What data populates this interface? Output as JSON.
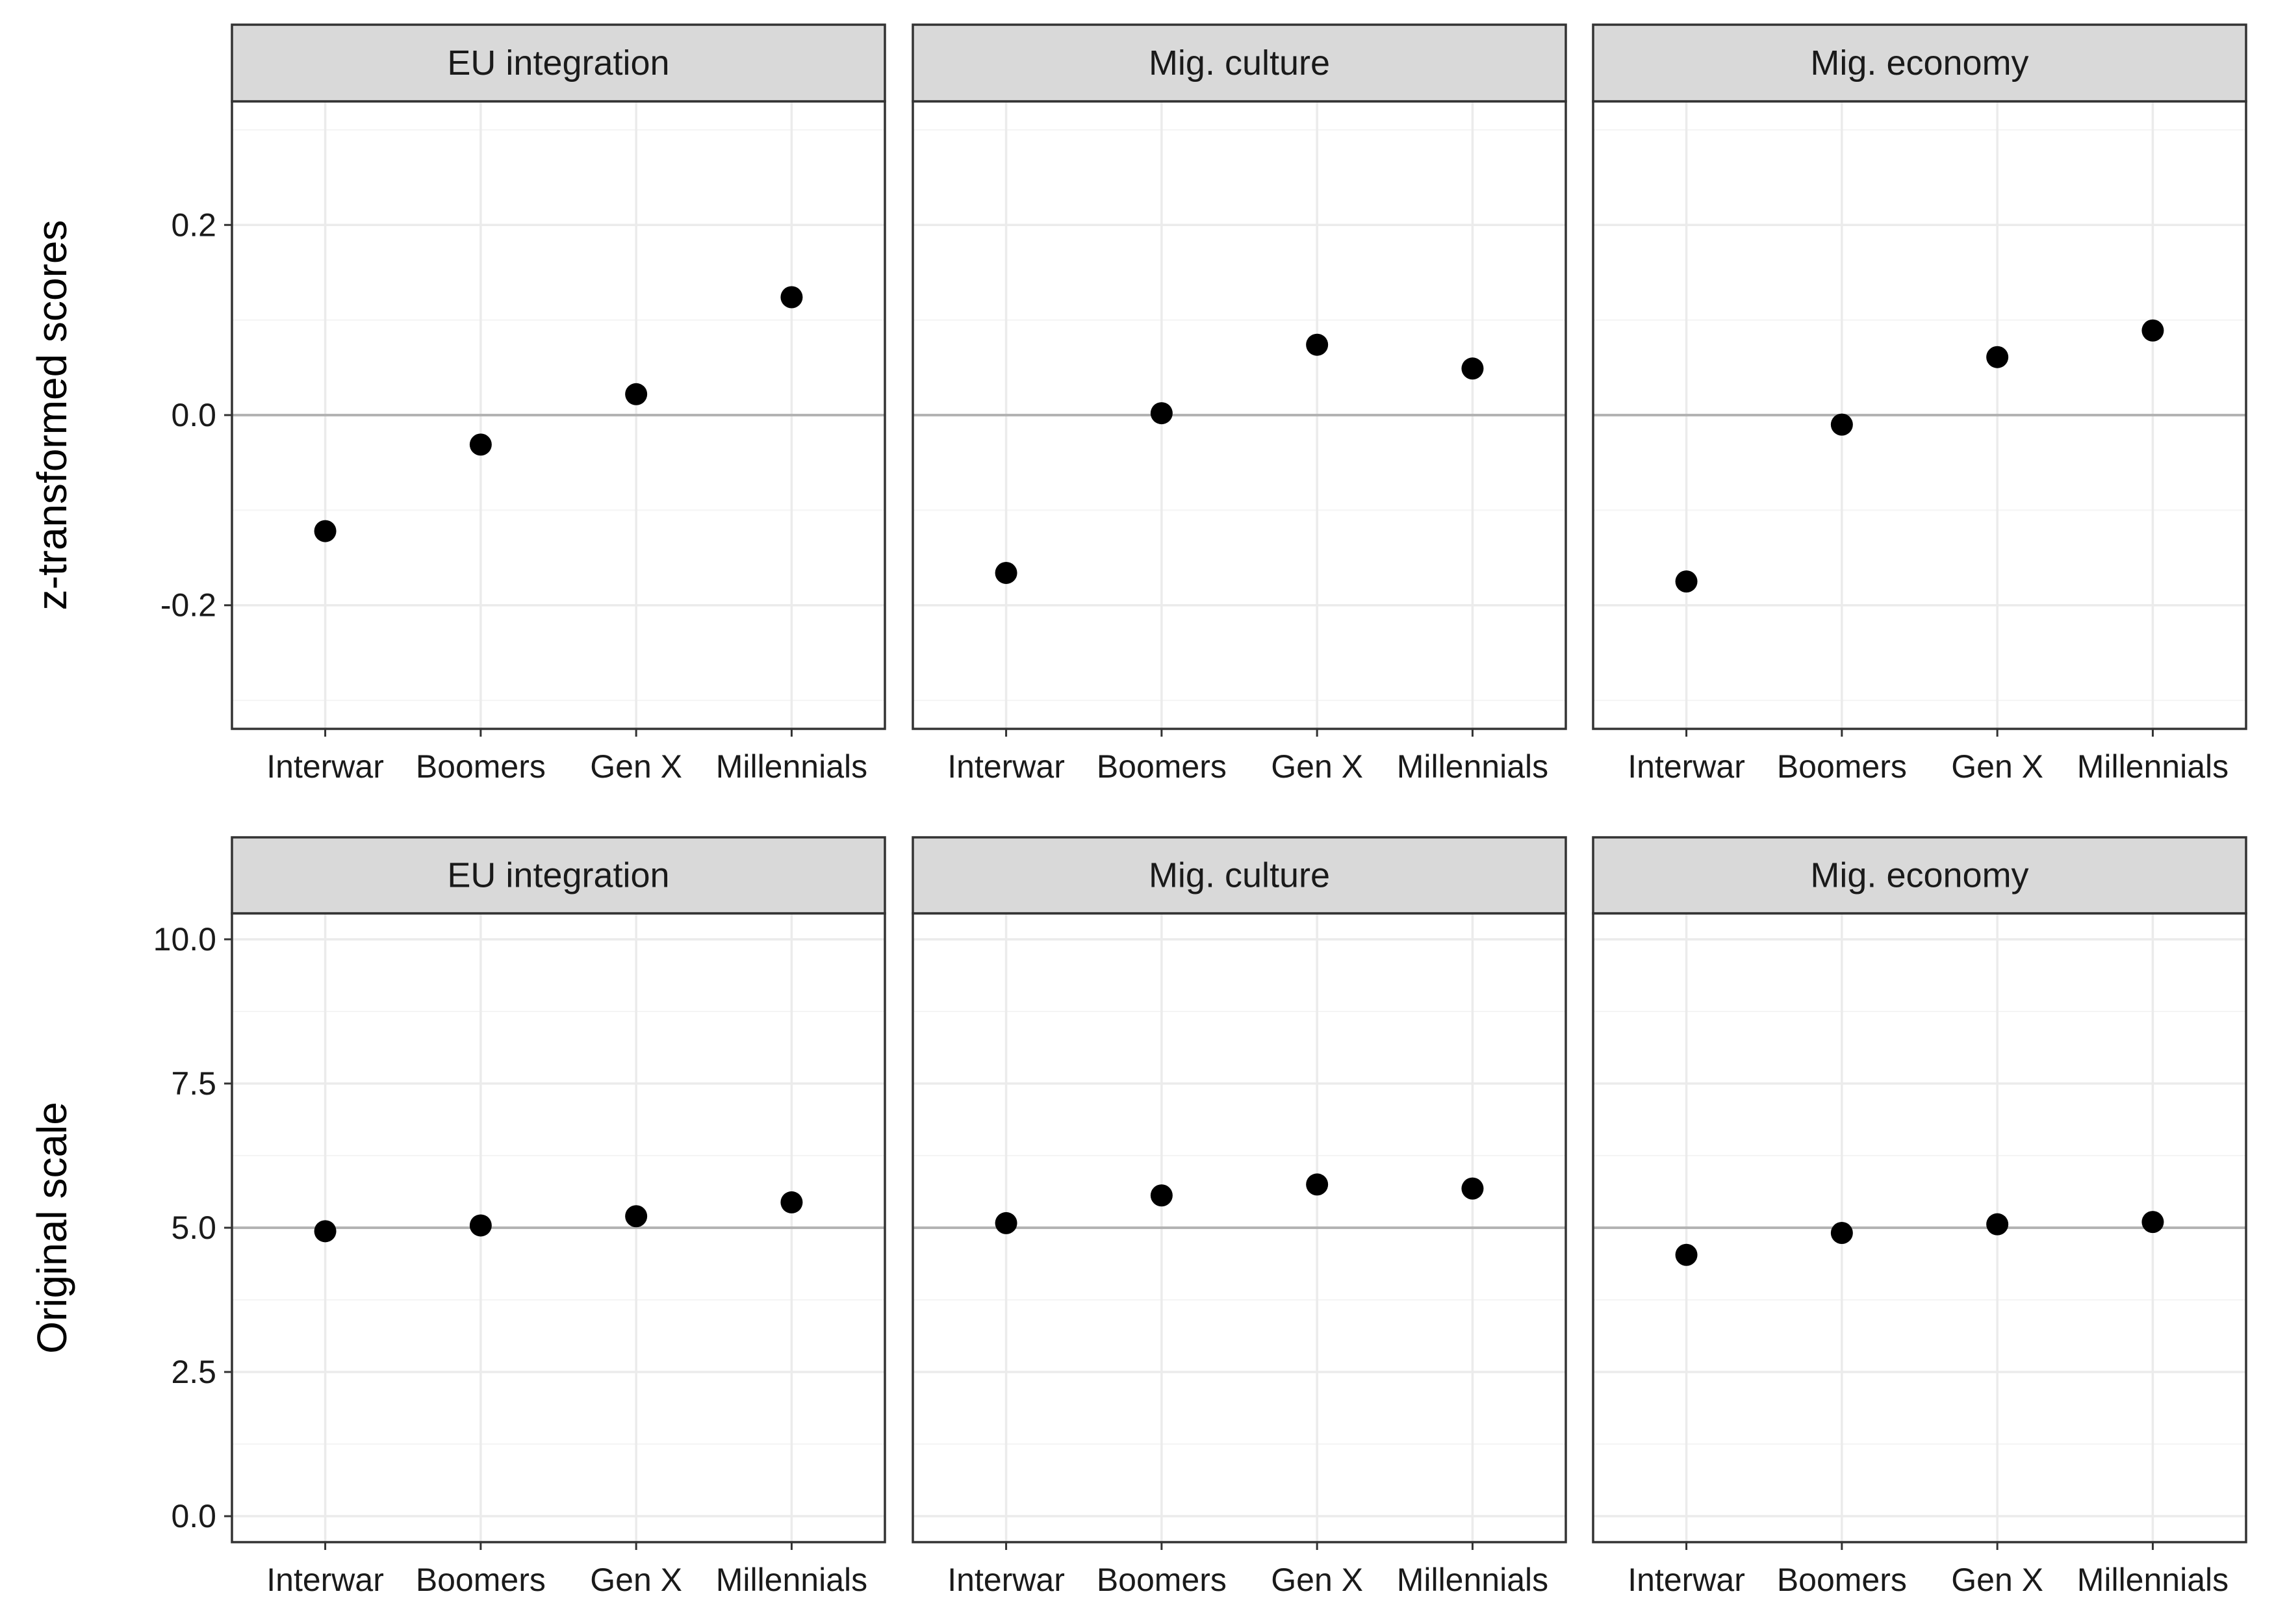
{
  "chart_data": [
    {
      "type": "scatter",
      "ylabel": "z-transformed scores",
      "ylim": [
        -0.33,
        0.33
      ],
      "yticks": [
        -0.2,
        0.0,
        0.2
      ],
      "ytick_labels": [
        "-0.2",
        "0.0",
        "0.2"
      ],
      "reference_line": 0.0,
      "categories": [
        "Interwar",
        "Boomers",
        "Gen X",
        "Millennials"
      ],
      "panels": [
        {
          "title": "EU integration",
          "values": [
            -0.122,
            -0.031,
            0.022,
            0.124
          ]
        },
        {
          "title": "Mig. culture",
          "values": [
            -0.166,
            0.002,
            0.074,
            0.049
          ]
        },
        {
          "title": "Mig. economy",
          "values": [
            -0.175,
            -0.01,
            0.061,
            0.089
          ]
        }
      ]
    },
    {
      "type": "scatter",
      "ylabel": "Original scale",
      "ylim": [
        -0.45,
        10.45
      ],
      "yticks": [
        0.0,
        2.5,
        5.0,
        7.5,
        10.0
      ],
      "ytick_labels": [
        "0.0",
        "2.5",
        "5.0",
        "7.5",
        "10.0"
      ],
      "reference_line": 5.0,
      "categories": [
        "Interwar",
        "Boomers",
        "Gen X",
        "Millennials"
      ],
      "panels": [
        {
          "title": "EU integration",
          "values": [
            4.94,
            5.04,
            5.2,
            5.44
          ]
        },
        {
          "title": "Mig. culture",
          "values": [
            5.08,
            5.56,
            5.75,
            5.68
          ]
        },
        {
          "title": "Mig. economy",
          "values": [
            4.53,
            4.91,
            5.06,
            5.1
          ]
        }
      ]
    }
  ],
  "colors": {
    "point": "#000000",
    "strip_fill": "#d9d9d9",
    "panel_border": "#333333",
    "grid_major": "#ebebeb",
    "grid_minor": "#f4f4f4",
    "reference_line": "#b3b3b3"
  }
}
